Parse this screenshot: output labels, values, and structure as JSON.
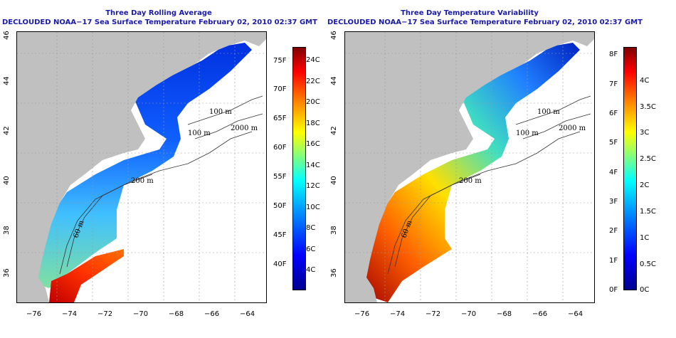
{
  "panels": [
    {
      "title": "Three Day Rolling Average",
      "subtitle": "DECLOUDED NOAA−17 Sea Surface Temperature February 02, 2010 02:37 GMT",
      "lon_ticks": [
        "−76",
        "−74",
        "−72",
        "−70",
        "−68",
        "−66",
        "−64"
      ],
      "lat_ticks": [
        "36",
        "38",
        "40",
        "42",
        "44",
        "46"
      ],
      "contours": [
        "100 m",
        "100 m",
        "2000 m",
        "200 m",
        "60 m"
      ],
      "colorbar_left": [
        "4C",
        "6C",
        "8C",
        "10C",
        "12C",
        "14C",
        "16C",
        "18C",
        "20C",
        "22C",
        "24C"
      ],
      "colorbar_right": [
        "40F",
        "45F",
        "50F",
        "55F",
        "60F",
        "65F",
        "70F",
        "75F"
      ]
    },
    {
      "title": "Three Day Temperature Variability",
      "subtitle": "DECLOUDED NOAA−17 Sea Surface Temperature February 02, 2010 02:37 GMT",
      "lon_ticks": [
        "−76",
        "−74",
        "−72",
        "−70",
        "−68",
        "−66",
        "−64"
      ],
      "lat_ticks": [
        "36",
        "38",
        "40",
        "42",
        "44",
        "46"
      ],
      "contours": [
        "100 m",
        "100 m",
        "2000 m",
        "200 m",
        "60 m"
      ],
      "colorbar_left": [
        "0F",
        "1F",
        "2F",
        "3F",
        "4F",
        "5F",
        "6F",
        "7F",
        "8F"
      ],
      "colorbar_right": [
        "0C",
        "0.5C",
        "1C",
        "1.5C",
        "2C",
        "2.5C",
        "3C",
        "3.5C",
        "4C"
      ]
    }
  ],
  "colors": {
    "land": "#c0c0c0",
    "title": "#1a1aa8",
    "jet": [
      "#00008f",
      "#0000ff",
      "#0080ff",
      "#00ffff",
      "#80ff80",
      "#ffff00",
      "#ff8000",
      "#ff0000",
      "#800000"
    ]
  }
}
